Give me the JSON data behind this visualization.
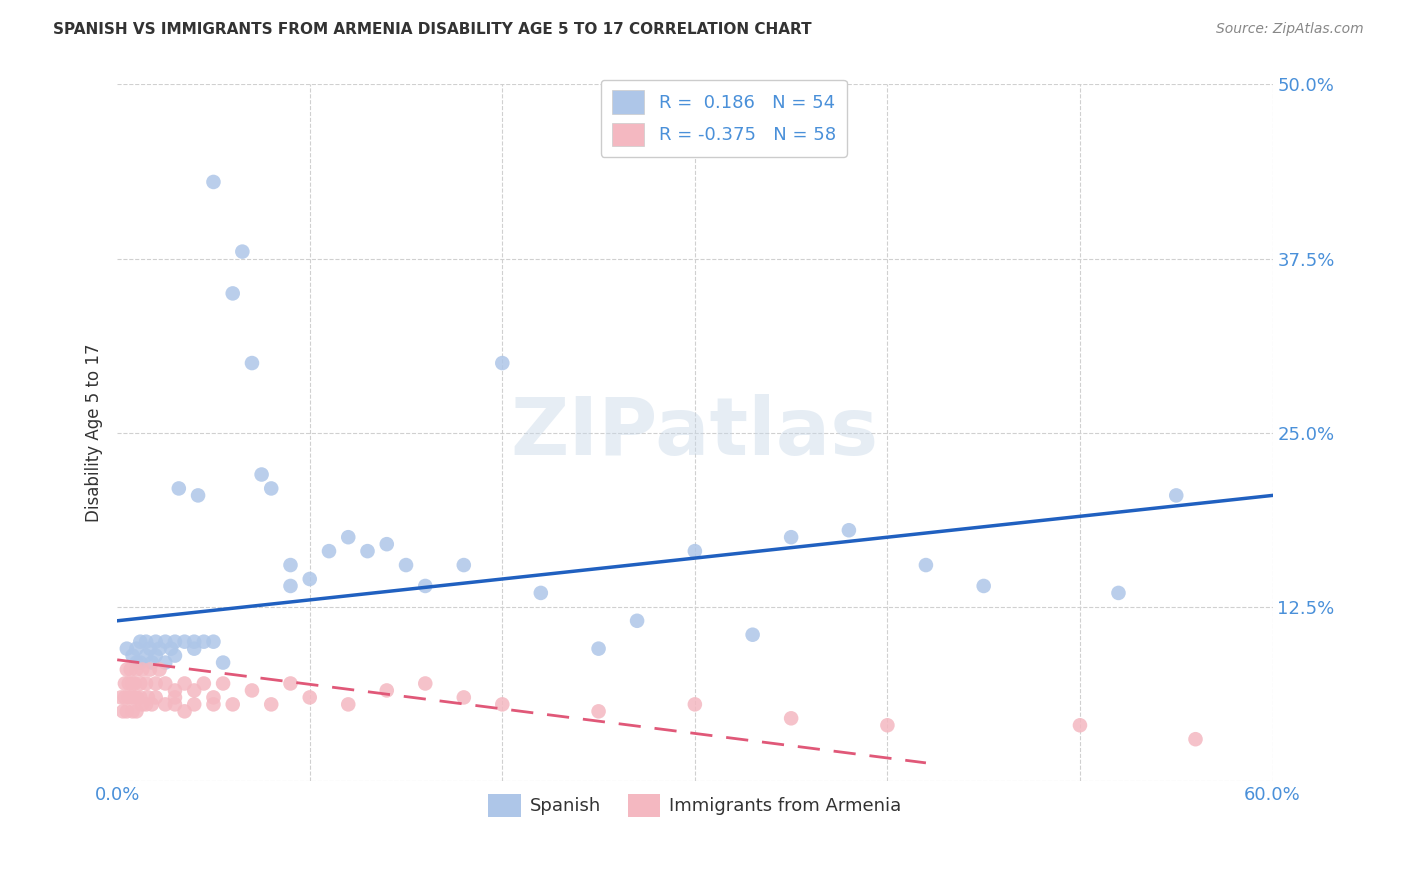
{
  "title": "SPANISH VS IMMIGRANTS FROM ARMENIA DISABILITY AGE 5 TO 17 CORRELATION CHART",
  "source": "Source: ZipAtlas.com",
  "ylabel": "Disability Age 5 to 17",
  "xlim": [
    0.0,
    0.6
  ],
  "ylim": [
    0.0,
    0.5
  ],
  "ytick_vals": [
    0.0,
    0.125,
    0.25,
    0.375,
    0.5
  ],
  "ytick_labels": [
    "",
    "12.5%",
    "25.0%",
    "37.5%",
    "50.0%"
  ],
  "xtick_vals": [
    0.0,
    0.1,
    0.2,
    0.3,
    0.4,
    0.5,
    0.6
  ],
  "xtick_labels": [
    "0.0%",
    "",
    "",
    "",
    "",
    "",
    "60.0%"
  ],
  "legend_color1": "#aec6e8",
  "legend_color2": "#f4b8c1",
  "blue_line_color": "#2060c0",
  "pink_line_color": "#e05878",
  "marker_blue": "#aec6e8",
  "marker_pink": "#f4b8c1",
  "watermark": "ZIPatlas",
  "blue_line_x": [
    0.0,
    0.6
  ],
  "blue_line_y": [
    0.115,
    0.205
  ],
  "pink_line_x": [
    0.0,
    0.42
  ],
  "pink_line_y": [
    0.087,
    0.013
  ],
  "spanish_x": [
    0.005,
    0.008,
    0.01,
    0.01,
    0.012,
    0.012,
    0.015,
    0.015,
    0.017,
    0.018,
    0.02,
    0.02,
    0.022,
    0.025,
    0.025,
    0.028,
    0.03,
    0.03,
    0.032,
    0.035,
    0.04,
    0.04,
    0.042,
    0.045,
    0.05,
    0.05,
    0.055,
    0.06,
    0.065,
    0.07,
    0.075,
    0.08,
    0.09,
    0.09,
    0.1,
    0.11,
    0.12,
    0.13,
    0.14,
    0.15,
    0.16,
    0.18,
    0.2,
    0.22,
    0.25,
    0.27,
    0.3,
    0.33,
    0.35,
    0.38,
    0.42,
    0.45,
    0.52,
    0.55
  ],
  "spanish_y": [
    0.095,
    0.09,
    0.095,
    0.085,
    0.1,
    0.085,
    0.1,
    0.09,
    0.095,
    0.085,
    0.1,
    0.09,
    0.095,
    0.085,
    0.1,
    0.095,
    0.1,
    0.09,
    0.21,
    0.1,
    0.095,
    0.1,
    0.205,
    0.1,
    0.43,
    0.1,
    0.085,
    0.35,
    0.38,
    0.3,
    0.22,
    0.21,
    0.155,
    0.14,
    0.145,
    0.165,
    0.175,
    0.165,
    0.17,
    0.155,
    0.14,
    0.155,
    0.3,
    0.135,
    0.095,
    0.115,
    0.165,
    0.105,
    0.175,
    0.18,
    0.155,
    0.14,
    0.135,
    0.205
  ],
  "armenia_x": [
    0.002,
    0.003,
    0.004,
    0.004,
    0.005,
    0.005,
    0.006,
    0.006,
    0.007,
    0.007,
    0.008,
    0.008,
    0.009,
    0.009,
    0.01,
    0.01,
    0.01,
    0.012,
    0.012,
    0.013,
    0.013,
    0.015,
    0.015,
    0.016,
    0.017,
    0.018,
    0.02,
    0.02,
    0.022,
    0.025,
    0.025,
    0.03,
    0.03,
    0.03,
    0.035,
    0.035,
    0.04,
    0.04,
    0.045,
    0.05,
    0.05,
    0.055,
    0.06,
    0.07,
    0.08,
    0.09,
    0.1,
    0.12,
    0.14,
    0.16,
    0.18,
    0.2,
    0.25,
    0.3,
    0.35,
    0.4,
    0.5,
    0.56
  ],
  "armenia_y": [
    0.06,
    0.05,
    0.07,
    0.06,
    0.08,
    0.05,
    0.07,
    0.06,
    0.08,
    0.06,
    0.07,
    0.05,
    0.06,
    0.07,
    0.08,
    0.06,
    0.05,
    0.07,
    0.06,
    0.08,
    0.055,
    0.07,
    0.055,
    0.06,
    0.08,
    0.055,
    0.07,
    0.06,
    0.08,
    0.055,
    0.07,
    0.065,
    0.06,
    0.055,
    0.07,
    0.05,
    0.065,
    0.055,
    0.07,
    0.06,
    0.055,
    0.07,
    0.055,
    0.065,
    0.055,
    0.07,
    0.06,
    0.055,
    0.065,
    0.07,
    0.06,
    0.055,
    0.05,
    0.055,
    0.045,
    0.04,
    0.04,
    0.03
  ],
  "grid_color": "#d0d0d0",
  "background_color": "#ffffff",
  "tick_label_color": "#4a90d9",
  "ylabel_color": "#333333",
  "title_color": "#333333",
  "source_color": "#888888"
}
